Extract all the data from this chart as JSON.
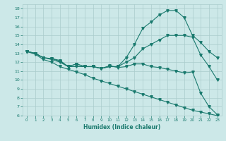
{
  "xlabel": "Humidex (Indice chaleur)",
  "xlim": [
    -0.5,
    23.5
  ],
  "ylim": [
    6,
    18.5
  ],
  "xticks": [
    0,
    1,
    2,
    3,
    4,
    5,
    6,
    7,
    8,
    9,
    10,
    11,
    12,
    13,
    14,
    15,
    16,
    17,
    18,
    19,
    20,
    21,
    22,
    23
  ],
  "yticks": [
    6,
    7,
    8,
    9,
    10,
    11,
    12,
    13,
    14,
    15,
    16,
    17,
    18
  ],
  "bg_color": "#cce8e8",
  "grid_color": "#aacccc",
  "line_color": "#1a7a6e",
  "line1_x": [
    0,
    1,
    2,
    3,
    4,
    5,
    6,
    7,
    8,
    9,
    10,
    11,
    12,
    13,
    14,
    15,
    16,
    17,
    18,
    19,
    20,
    21,
    22,
    23
  ],
  "line1_y": [
    13.2,
    13.0,
    12.5,
    12.3,
    12.0,
    11.5,
    11.8,
    11.5,
    11.5,
    11.3,
    11.6,
    11.4,
    11.5,
    11.8,
    11.8,
    11.5,
    11.4,
    11.2,
    11.0,
    10.8,
    10.9,
    8.5,
    7.0,
    6.1
  ],
  "line2_x": [
    0,
    1,
    2,
    3,
    4,
    5,
    6,
    7,
    8,
    9,
    10,
    11,
    12,
    13,
    14,
    15,
    16,
    17,
    18,
    19,
    20,
    21,
    22,
    23
  ],
  "line2_y": [
    13.2,
    13.0,
    12.5,
    12.4,
    12.2,
    11.5,
    11.8,
    11.5,
    11.5,
    11.3,
    11.5,
    11.5,
    12.5,
    14.0,
    15.8,
    16.5,
    17.3,
    17.8,
    17.8,
    17.0,
    15.0,
    14.2,
    13.2,
    12.5
  ],
  "line3_x": [
    0,
    1,
    2,
    3,
    4,
    5,
    6,
    7,
    8,
    9,
    10,
    11,
    12,
    13,
    14,
    15,
    16,
    17,
    18,
    19,
    20,
    21,
    22,
    23
  ],
  "line3_y": [
    13.2,
    13.0,
    12.5,
    12.4,
    12.1,
    11.5,
    11.5,
    11.5,
    11.5,
    11.3,
    11.5,
    11.5,
    12.0,
    12.5,
    13.5,
    14.0,
    14.5,
    15.0,
    15.0,
    15.0,
    14.8,
    12.8,
    11.5,
    10.0
  ],
  "line4_x": [
    0,
    1,
    2,
    3,
    4,
    5,
    6,
    7,
    8,
    9,
    10,
    11,
    12,
    13,
    14,
    15,
    16,
    17,
    18,
    19,
    20,
    21,
    22,
    23
  ],
  "line4_y": [
    13.2,
    12.9,
    12.3,
    12.0,
    11.5,
    11.2,
    10.9,
    10.6,
    10.2,
    9.9,
    9.6,
    9.3,
    9.0,
    8.7,
    8.4,
    8.1,
    7.8,
    7.5,
    7.2,
    6.9,
    6.6,
    6.4,
    6.2,
    6.0
  ]
}
